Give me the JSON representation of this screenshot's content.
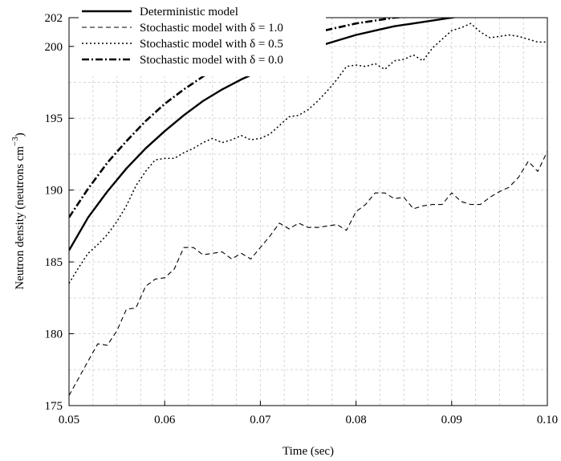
{
  "chart_data": {
    "type": "line",
    "xlabel": "Time (sec)",
    "ylabel_main": "Neutron density (neutrons cm",
    "ylabel_sup": "−3",
    "ylabel_close": ")",
    "xlim": [
      0.05,
      0.1
    ],
    "ylim": [
      175,
      202
    ],
    "x_ticks": [
      0.05,
      0.06,
      0.07,
      0.08,
      0.09,
      0.1
    ],
    "x_tick_labels": [
      "0.05",
      "0.06",
      "0.07",
      "0.08",
      "0.09",
      "0.10"
    ],
    "y_ticks": [
      175,
      180,
      185,
      190,
      195,
      200,
      202
    ],
    "y_tick_labels": [
      "175",
      "180",
      "185",
      "190",
      "195",
      "200",
      "202"
    ],
    "grid": true,
    "legend_position": "top-left",
    "series": [
      {
        "name": "Deterministic model",
        "style": "solid",
        "x": [
          0.05,
          0.052,
          0.054,
          0.056,
          0.058,
          0.06,
          0.062,
          0.064,
          0.066,
          0.068,
          0.07,
          0.072,
          0.074,
          0.076,
          0.078,
          0.08,
          0.082,
          0.084,
          0.086,
          0.088,
          0.09,
          0.092,
          0.094,
          0.096,
          0.098,
          0.1
        ],
        "y": [
          185.8,
          188.1,
          189.9,
          191.5,
          192.9,
          194.1,
          195.2,
          196.2,
          197.0,
          197.7,
          198.3,
          198.9,
          199.5,
          200.0,
          200.4,
          200.8,
          201.1,
          201.4,
          201.6,
          201.8,
          202.0,
          202.2,
          202.4,
          202.6,
          202.7,
          202.9
        ]
      },
      {
        "name": "Stochastic model with δ = 1.0",
        "style": "dashed",
        "x": [
          0.05,
          0.051,
          0.052,
          0.053,
          0.054,
          0.055,
          0.056,
          0.057,
          0.058,
          0.059,
          0.06,
          0.061,
          0.062,
          0.063,
          0.064,
          0.065,
          0.066,
          0.067,
          0.068,
          0.069,
          0.07,
          0.071,
          0.072,
          0.073,
          0.074,
          0.075,
          0.076,
          0.077,
          0.078,
          0.079,
          0.08,
          0.081,
          0.082,
          0.083,
          0.084,
          0.085,
          0.086,
          0.087,
          0.088,
          0.089,
          0.09,
          0.091,
          0.092,
          0.093,
          0.094,
          0.095,
          0.096,
          0.097,
          0.098,
          0.099,
          0.1
        ],
        "y": [
          175.7,
          176.9,
          178.1,
          179.3,
          179.2,
          180.2,
          181.7,
          181.8,
          183.3,
          183.8,
          183.9,
          184.5,
          186.0,
          186.0,
          185.5,
          185.6,
          185.7,
          185.2,
          185.6,
          185.2,
          186.0,
          186.8,
          187.7,
          187.3,
          187.7,
          187.4,
          187.4,
          187.5,
          187.6,
          187.2,
          188.5,
          189.0,
          189.8,
          189.8,
          189.4,
          189.5,
          188.7,
          188.9,
          189.0,
          189.0,
          189.8,
          189.2,
          189.0,
          189.0,
          189.5,
          189.9,
          190.2,
          190.9,
          192.0,
          191.3,
          192.7
        ]
      },
      {
        "name": "Stochastic model with δ = 0.5",
        "style": "dotted",
        "x": [
          0.05,
          0.051,
          0.052,
          0.053,
          0.054,
          0.055,
          0.056,
          0.057,
          0.058,
          0.059,
          0.06,
          0.061,
          0.062,
          0.063,
          0.064,
          0.065,
          0.066,
          0.067,
          0.068,
          0.069,
          0.07,
          0.071,
          0.072,
          0.073,
          0.074,
          0.075,
          0.076,
          0.077,
          0.078,
          0.079,
          0.08,
          0.081,
          0.082,
          0.083,
          0.084,
          0.085,
          0.086,
          0.087,
          0.088,
          0.089,
          0.09,
          0.091,
          0.092,
          0.093,
          0.094,
          0.095,
          0.096,
          0.097,
          0.098,
          0.099,
          0.1
        ],
        "y": [
          183.5,
          184.6,
          185.6,
          186.2,
          186.9,
          187.8,
          188.9,
          190.3,
          191.3,
          192.1,
          192.2,
          192.2,
          192.6,
          192.9,
          193.3,
          193.6,
          193.3,
          193.5,
          193.8,
          193.5,
          193.6,
          193.9,
          194.5,
          195.1,
          195.2,
          195.6,
          196.2,
          196.9,
          197.7,
          198.6,
          198.7,
          198.6,
          198.8,
          198.4,
          199.0,
          199.1,
          199.4,
          199.0,
          199.9,
          200.5,
          201.1,
          201.3,
          201.6,
          201.0,
          200.6,
          200.7,
          200.8,
          200.7,
          200.5,
          200.3,
          200.3
        ]
      },
      {
        "name": "Stochastic model with δ = 0.0",
        "style": "dashdot",
        "x": [
          0.05,
          0.052,
          0.054,
          0.056,
          0.058,
          0.06,
          0.062,
          0.064,
          0.066,
          0.068,
          0.07,
          0.072,
          0.074,
          0.076,
          0.078,
          0.08,
          0.082,
          0.084,
          0.086,
          0.088,
          0.09,
          0.092,
          0.094,
          0.096,
          0.098,
          0.1
        ],
        "y": [
          188.1,
          190.1,
          191.9,
          193.4,
          194.8,
          196.0,
          197.0,
          197.9,
          198.7,
          199.3,
          199.8,
          200.3,
          200.7,
          201.0,
          201.3,
          201.6,
          201.8,
          202.0,
          202.1,
          202.3,
          202.5,
          202.6,
          202.7,
          202.8,
          202.9,
          203.0
        ]
      }
    ]
  }
}
